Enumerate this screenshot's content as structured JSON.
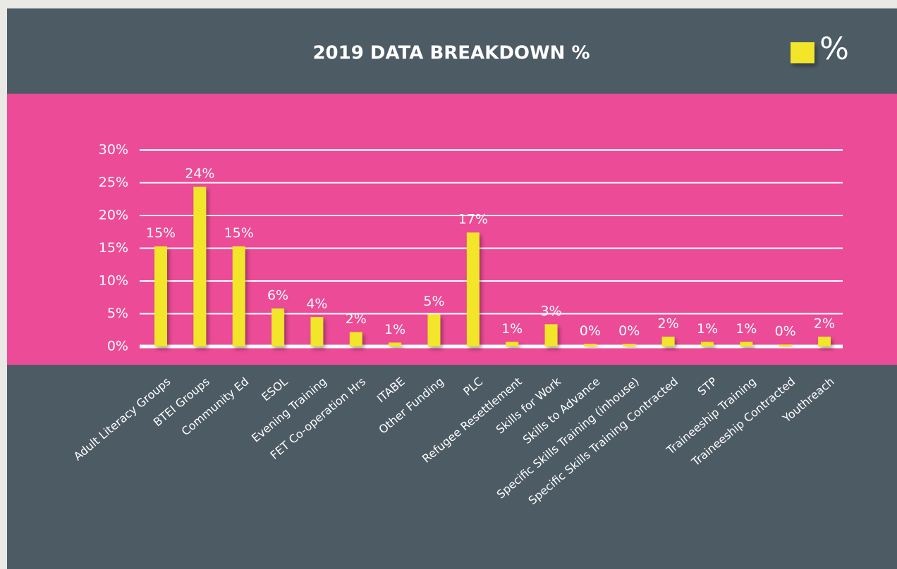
{
  "chart_data": {
    "type": "bar",
    "title": "2019 DATA BREAKDOWN %",
    "categories": [
      "Adult Literacy Groups",
      "BTEI Groups",
      "Community Ed",
      "ESOL",
      "Evening Training",
      "FET Co-operation Hrs",
      "ITABE",
      "Other Funding",
      "PLC",
      "Refugee Resettlement",
      "Skills for Work",
      "Skills to Advance",
      "Specific Skills Training (inhouse)",
      "Specific Skills Training Contracted",
      "STP",
      "Traineeship Training",
      "Traineeship  Contracted",
      "Youthreach"
    ],
    "series": [
      {
        "name": "%",
        "color": "#f2e52a",
        "values": [
          15.3,
          24.4,
          15.3,
          5.8,
          4.5,
          2.2,
          0.6,
          4.9,
          17.4,
          0.7,
          3.4,
          0.4,
          0.4,
          1.5,
          0.7,
          0.7,
          0.3,
          1.5
        ],
        "value_labels": [
          "15%",
          "24%",
          "15%",
          "6%",
          "4%",
          "2%",
          "1%",
          "5%",
          "17%",
          "1%",
          "3%",
          "0%",
          "0%",
          "2%",
          "1%",
          "1%",
          "0%",
          "2%"
        ]
      }
    ],
    "ylim": [
      0,
      30
    ],
    "yticks": [
      {
        "value": 0,
        "label": "0%"
      },
      {
        "value": 5,
        "label": "5%"
      },
      {
        "value": 10,
        "label": "10%"
      },
      {
        "value": 15,
        "label": "15%"
      },
      {
        "value": 20,
        "label": "20%"
      },
      {
        "value": 25,
        "label": "25%"
      },
      {
        "value": 30,
        "label": "30%"
      }
    ],
    "grid": true
  }
}
